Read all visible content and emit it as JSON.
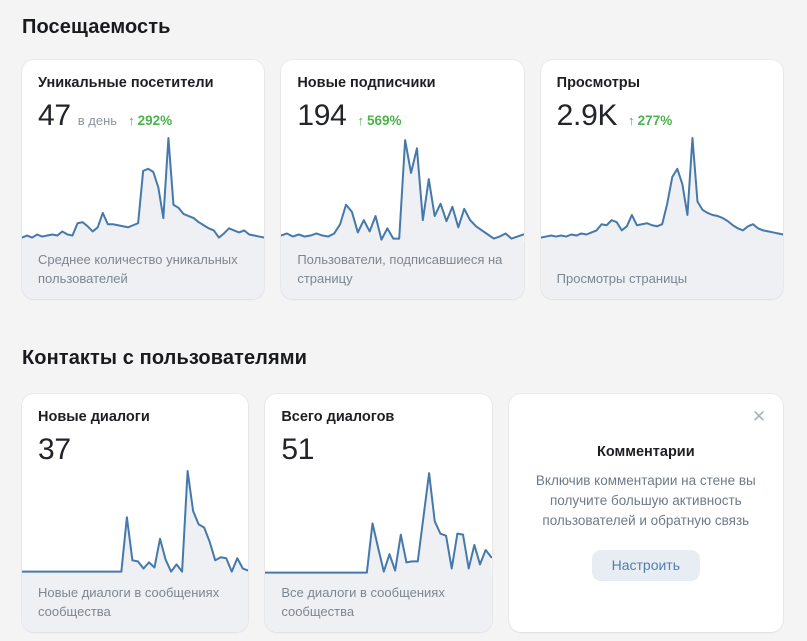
{
  "colors": {
    "chart_line": "#4679ab",
    "chart_fill": "#eef0f4",
    "trend_green": "#4bb34b",
    "accent_blue": "#4f7fae"
  },
  "icons": {
    "trend_up": "↑",
    "close": "✕"
  },
  "sections": {
    "traffic": {
      "title": "Посещаемость",
      "cards": [
        {
          "title": "Уникальные посетители",
          "value": "47",
          "suffix": "в день",
          "trend": "292%",
          "caption": "Среднее количество уникальных пользователей"
        },
        {
          "title": "Новые подписчики",
          "value": "194",
          "trend": "569%",
          "caption": "Пользователи, подписавшиеся на страницу"
        },
        {
          "title": "Просмотры",
          "value": "2.9K",
          "trend": "277%",
          "caption": "Просмотры страницы"
        }
      ]
    },
    "contacts": {
      "title": "Контакты с пользователями",
      "cards": [
        {
          "title": "Новые диалоги",
          "value": "37",
          "caption": "Новые диалоги в сообщениях сообщества"
        },
        {
          "title": "Всего диалогов",
          "value": "51",
          "caption": "Все диалоги в сообщениях сообщества"
        }
      ],
      "promo": {
        "title": "Комментарии",
        "body": "Включив комментарии на стене вы получите большую активность пользователей и обратную связь",
        "button_label": "Настроить"
      }
    }
  },
  "chart_data": [
    {
      "type": "area",
      "label": "Уникальные посетители",
      "unit": "pct_of_max",
      "values_pct_of_max": [
        3,
        5,
        3,
        6,
        4,
        5,
        6,
        5,
        9,
        6,
        5,
        17,
        18,
        14,
        9,
        13,
        27,
        16,
        16,
        15,
        14,
        13,
        15,
        17,
        68,
        70,
        67,
        52,
        22,
        100,
        35,
        32,
        26,
        24,
        22,
        18,
        15,
        12,
        10,
        3,
        7,
        12,
        10,
        8,
        10,
        6,
        5,
        4,
        3
      ]
    },
    {
      "type": "area",
      "label": "Новые подписчики",
      "unit": "pct_of_max",
      "values_pct_of_max": [
        5,
        7,
        4,
        6,
        4,
        5,
        7,
        5,
        4,
        7,
        16,
        35,
        28,
        8,
        20,
        9,
        24,
        1,
        12,
        2,
        2,
        98,
        66,
        90,
        20,
        60,
        24,
        36,
        19,
        33,
        13,
        31,
        20,
        14,
        10,
        6,
        2,
        4,
        7,
        2,
        4,
        6
      ]
    },
    {
      "type": "area",
      "label": "Просмотры",
      "unit": "pct_of_max",
      "values_pct_of_max": [
        3,
        4,
        5,
        4,
        5,
        4,
        6,
        5,
        7,
        6,
        8,
        10,
        16,
        15,
        20,
        18,
        10,
        14,
        25,
        15,
        16,
        17,
        15,
        14,
        16,
        36,
        62,
        70,
        55,
        25,
        100,
        38,
        30,
        27,
        25,
        24,
        22,
        19,
        15,
        12,
        10,
        14,
        16,
        12,
        10,
        9,
        8,
        7,
        6
      ]
    },
    {
      "type": "area",
      "label": "Новые диалоги",
      "unit": "pct_of_max",
      "values_pct_of_max": [
        2,
        2,
        2,
        2,
        2,
        2,
        2,
        2,
        2,
        2,
        2,
        2,
        2,
        2,
        2,
        2,
        2,
        2,
        2,
        55,
        13,
        12,
        5,
        11,
        6,
        34,
        14,
        2,
        9,
        2,
        100,
        61,
        48,
        45,
        31,
        13,
        16,
        15,
        2,
        15,
        5,
        3
      ]
    },
    {
      "type": "area",
      "label": "Всего диалогов",
      "unit": "pct_of_max",
      "values_pct_of_max": [
        1,
        1,
        1,
        1,
        1,
        1,
        1,
        1,
        1,
        1,
        1,
        1,
        1,
        1,
        1,
        1,
        1,
        1,
        1,
        49,
        25,
        2,
        19,
        3,
        38,
        11,
        12,
        12,
        55,
        98,
        51,
        39,
        37,
        5,
        39,
        38,
        5,
        28,
        9,
        23,
        16
      ]
    }
  ]
}
